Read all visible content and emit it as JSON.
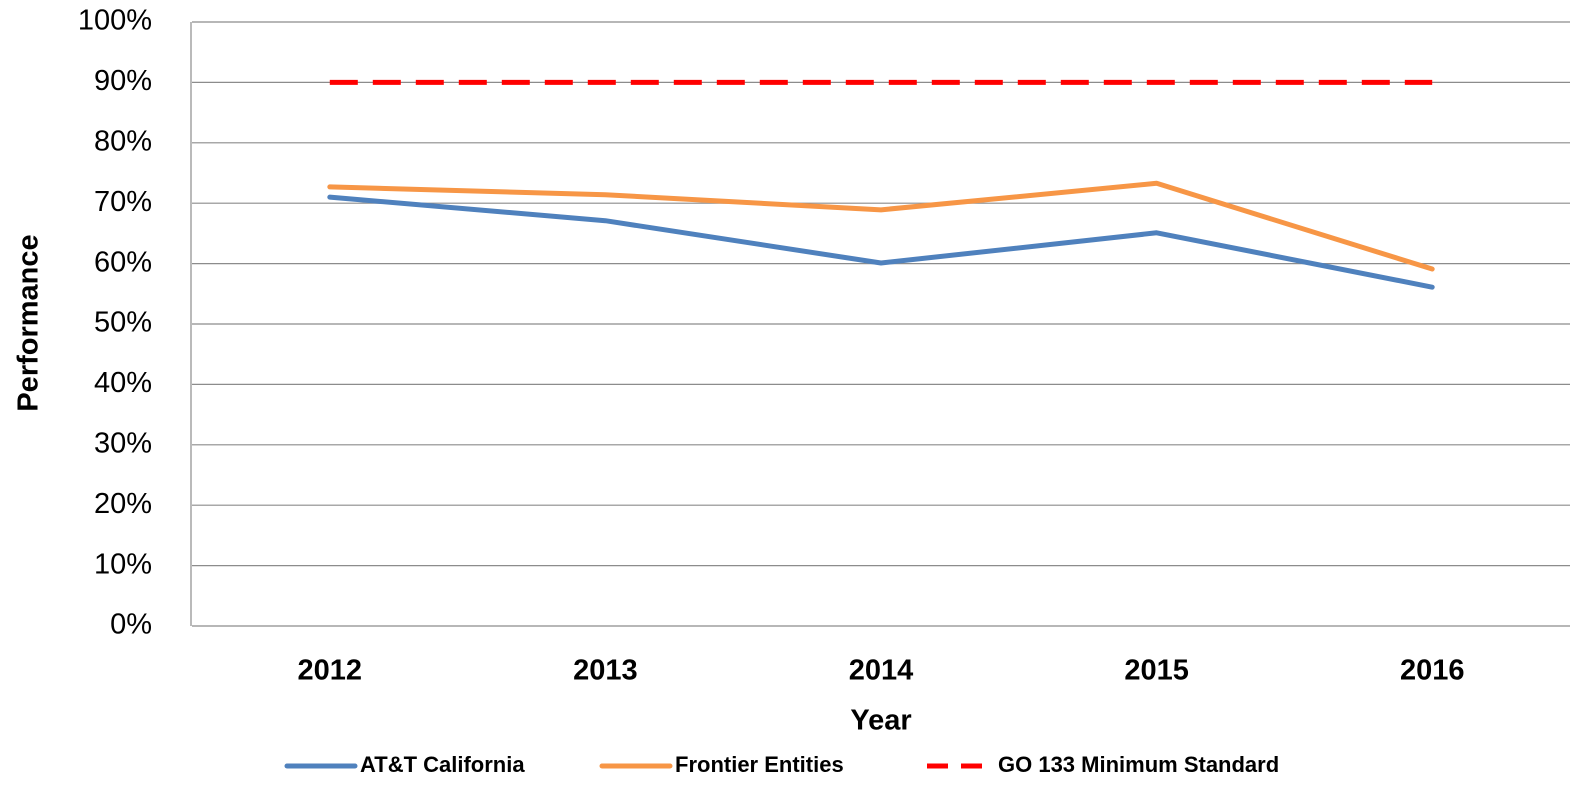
{
  "chart_data": {
    "type": "line",
    "categories": [
      "2012",
      "2013",
      "2014",
      "2015",
      "2016"
    ],
    "series": [
      {
        "name": "AT&T California",
        "color": "#4f81bd",
        "line_style": "solid",
        "values": [
          71.0,
          67.1,
          60.1,
          65.1,
          56.1
        ]
      },
      {
        "name": "Frontier Entities",
        "color": "#f79646",
        "line_style": "solid",
        "values": [
          72.7,
          71.4,
          68.9,
          73.3,
          59.1
        ]
      },
      {
        "name": "GO 133 Minimum Standard",
        "color": "#ff0000",
        "line_style": "dashed",
        "values": [
          90,
          90,
          90,
          90,
          90
        ]
      }
    ],
    "x_label": "Year",
    "y_label": "Performance",
    "ylim": [
      0,
      100
    ],
    "yticks": [
      {
        "value": 0,
        "label": "0%"
      },
      {
        "value": 10,
        "label": "10%"
      },
      {
        "value": 20,
        "label": "20%"
      },
      {
        "value": 30,
        "label": "30%"
      },
      {
        "value": 40,
        "label": "40%"
      },
      {
        "value": 50,
        "label": "50%"
      },
      {
        "value": 60,
        "label": "60%"
      },
      {
        "value": 70,
        "label": "70%"
      },
      {
        "value": 80,
        "label": "80%"
      },
      {
        "value": 90,
        "label": "90%"
      },
      {
        "value": 100,
        "label": "100%"
      }
    ],
    "grid": true,
    "legend": "bottom"
  }
}
